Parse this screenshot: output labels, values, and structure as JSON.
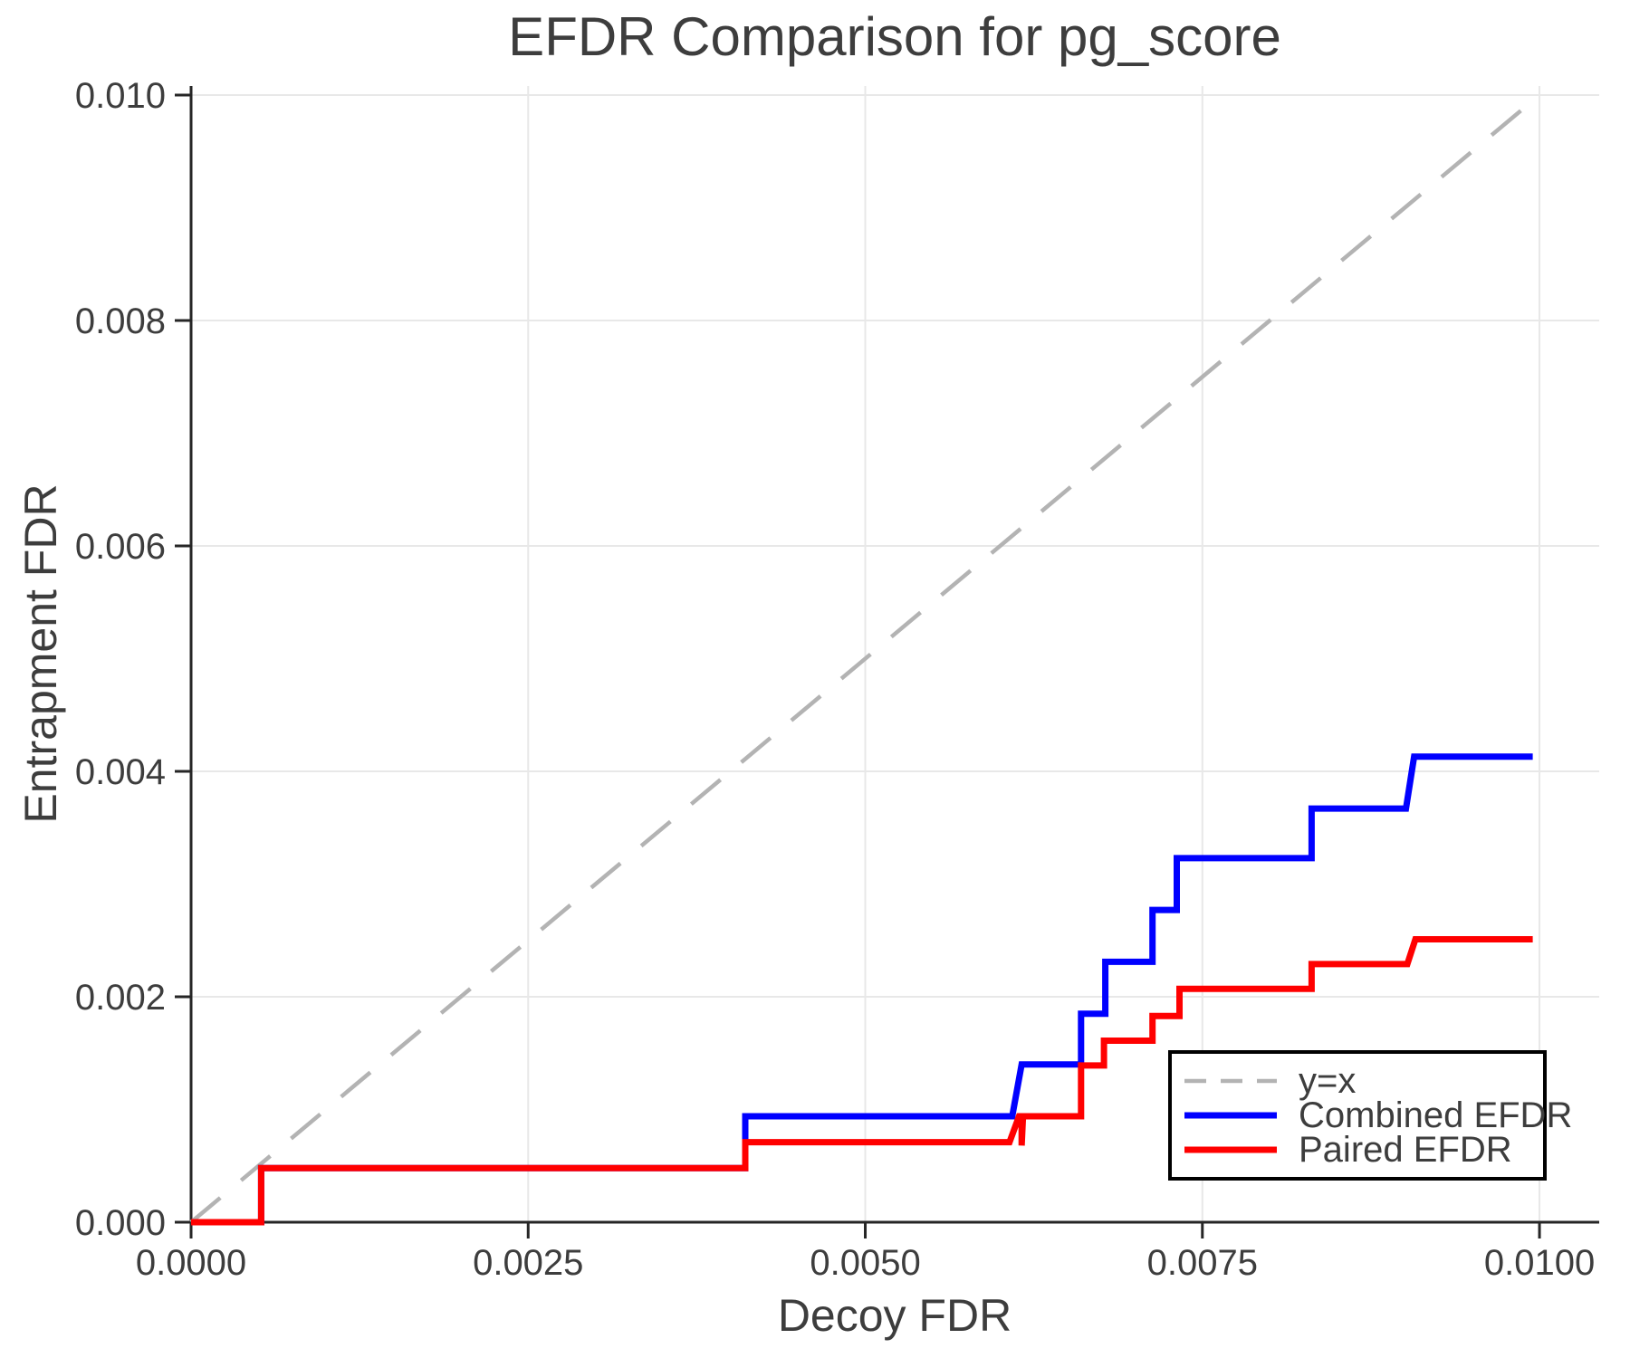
{
  "figure": {
    "background": "#ffffff",
    "text_color": "#3d3d3d",
    "spine_color": "#262626",
    "grid_color": "#e8e8e8",
    "legend_border_color": "#000000"
  },
  "chart_data": {
    "type": "line",
    "title": "EFDR Comparison for pg_score",
    "xlabel": "Decoy FDR",
    "ylabel": "Entrapment FDR",
    "xlim": [
      0,
      0.010443
    ],
    "ylim": [
      0,
      0.01008
    ],
    "grid": true,
    "legend": {
      "position": "lower-right-inside",
      "entries": [
        "y=x",
        "Combined EFDR",
        "Paired EFDR"
      ]
    },
    "x_ticks": {
      "values": [
        0,
        0.0025,
        0.005,
        0.0075,
        0.01
      ],
      "labels": [
        "0.0000",
        "0.0025",
        "0.0050",
        "0.0075",
        "0.0100"
      ]
    },
    "y_ticks": {
      "values": [
        0,
        0.002,
        0.004,
        0.006,
        0.008,
        0.01
      ],
      "labels": [
        "0.000",
        "0.002",
        "0.004",
        "0.006",
        "0.008",
        "0.010"
      ]
    },
    "series": [
      {
        "key": "identity",
        "name": "y=x",
        "color": "#b3b3b3",
        "width": 4.5,
        "dash": "42 30",
        "points": [
          [
            0,
            0
          ],
          [
            0.00998,
            0.00998
          ]
        ]
      },
      {
        "key": "combined-efdr",
        "name": "Combined EFDR",
        "color": "#0000ff",
        "width": 7,
        "dash": null,
        "points": [
          [
            0.0,
            0.0
          ],
          [
            0.00052,
            0.0
          ],
          [
            0.00052,
            0.00048
          ],
          [
            0.00411,
            0.00048
          ],
          [
            0.00411,
            0.00094
          ],
          [
            0.00609,
            0.00094
          ],
          [
            0.00616,
            0.0014
          ],
          [
            0.0066,
            0.0014
          ],
          [
            0.0066,
            0.00185
          ],
          [
            0.00678,
            0.00185
          ],
          [
            0.00678,
            0.00231
          ],
          [
            0.00713,
            0.00231
          ],
          [
            0.00713,
            0.00277
          ],
          [
            0.00731,
            0.00277
          ],
          [
            0.00731,
            0.00323
          ],
          [
            0.00831,
            0.00323
          ],
          [
            0.00831,
            0.00367
          ],
          [
            0.00901,
            0.00367
          ],
          [
            0.00907,
            0.00413
          ],
          [
            0.00995,
            0.00413
          ]
        ]
      },
      {
        "key": "paired-efdr",
        "name": "Paired EFDR",
        "color": "#ff0000",
        "width": 7,
        "dash": null,
        "points": [
          [
            0.0,
            0.0
          ],
          [
            0.00052,
            0.0
          ],
          [
            0.00052,
            0.00048
          ],
          [
            0.00411,
            0.00048
          ],
          [
            0.00411,
            0.00071
          ],
          [
            0.00607,
            0.00071
          ],
          [
            0.00614,
            0.00094
          ],
          [
            0.00616,
            0.00094
          ],
          [
            0.00616,
            0.00068
          ],
          [
            0.00617,
            0.00094
          ],
          [
            0.0066,
            0.00094
          ],
          [
            0.0066,
            0.00139
          ],
          [
            0.00677,
            0.00139
          ],
          [
            0.00677,
            0.00161
          ],
          [
            0.00713,
            0.00161
          ],
          [
            0.00713,
            0.00183
          ],
          [
            0.00733,
            0.00183
          ],
          [
            0.00733,
            0.00207
          ],
          [
            0.00831,
            0.00207
          ],
          [
            0.00831,
            0.00229
          ],
          [
            0.00902,
            0.00229
          ],
          [
            0.00908,
            0.00251
          ],
          [
            0.00995,
            0.00251
          ]
        ]
      }
    ]
  }
}
